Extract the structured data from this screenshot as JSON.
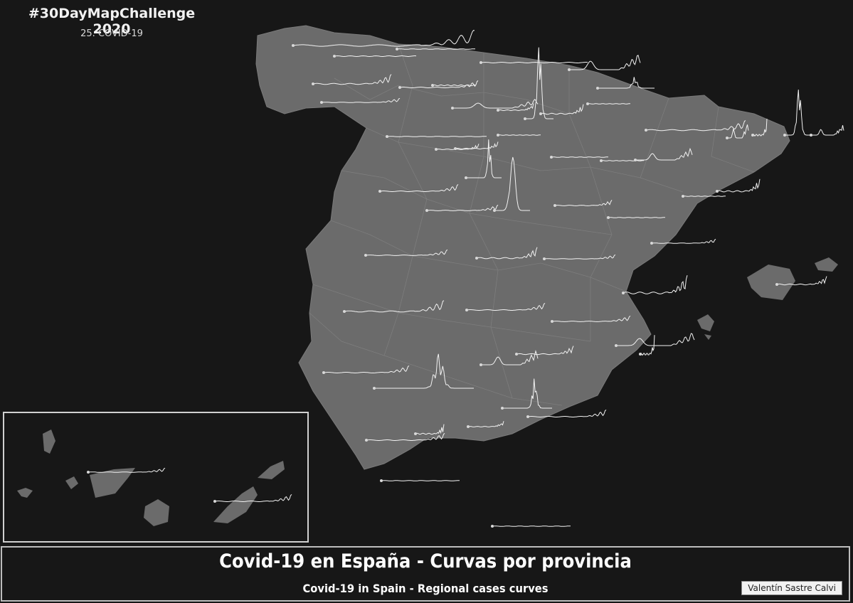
{
  "header": {
    "challenge_title": "#30DayMapChallenge 2020",
    "day_label": "25. COVID-19"
  },
  "footer": {
    "title": "Covid-19 en España - Curvas por provincia",
    "subtitle": "Covid-19 in Spain - Regional cases curves",
    "credit": "Valentín Sastre Calvi"
  },
  "colors": {
    "background": "#171717",
    "land": "#6b6b6b",
    "border": "#7e7e7e",
    "curve": "#f2f2f2",
    "frame": "#bdbdbd"
  },
  "curve_shapes": [
    "flat",
    "late-wave",
    "two-waves",
    "sharp-peak",
    "huge-spike"
  ]
}
